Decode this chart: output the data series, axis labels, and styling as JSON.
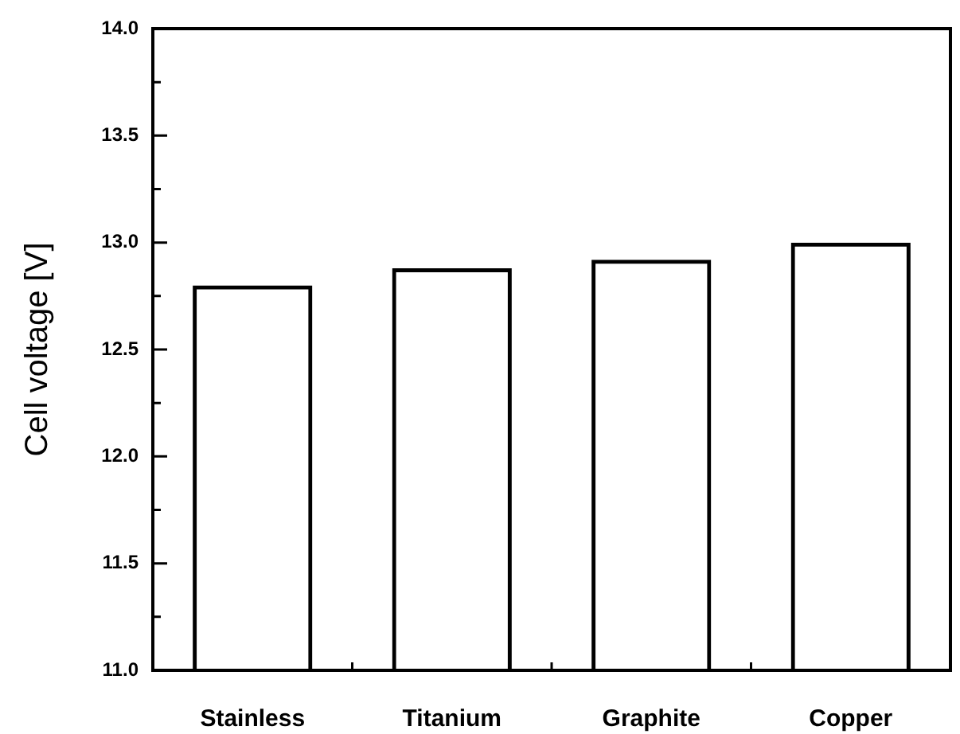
{
  "chart_data": {
    "type": "bar",
    "categories": [
      "Stainless",
      "Titanium",
      "Graphite",
      "Copper"
    ],
    "values": [
      12.8,
      12.88,
      12.92,
      13.0
    ],
    "color": "#000000",
    "ylabel": "Cell voltage [V]",
    "ylim": [
      11,
      14
    ],
    "yticks": [
      {
        "value": 11,
        "label": "11.0"
      },
      {
        "value": 11.25,
        "label": null
      },
      {
        "value": 11.5,
        "label": "11.5"
      },
      {
        "value": 11.75,
        "label": null
      },
      {
        "value": 12,
        "label": "12.0"
      },
      {
        "value": 12.25,
        "label": null
      },
      {
        "value": 12.5,
        "label": "12.5"
      },
      {
        "value": 12.75,
        "label": null
      },
      {
        "value": 13,
        "label": "13.0"
      },
      {
        "value": 13.25,
        "label": null
      },
      {
        "value": 13.5,
        "label": "13.5"
      },
      {
        "value": 13.75,
        "label": null
      },
      {
        "value": 14,
        "label": "14.0"
      }
    ]
  }
}
